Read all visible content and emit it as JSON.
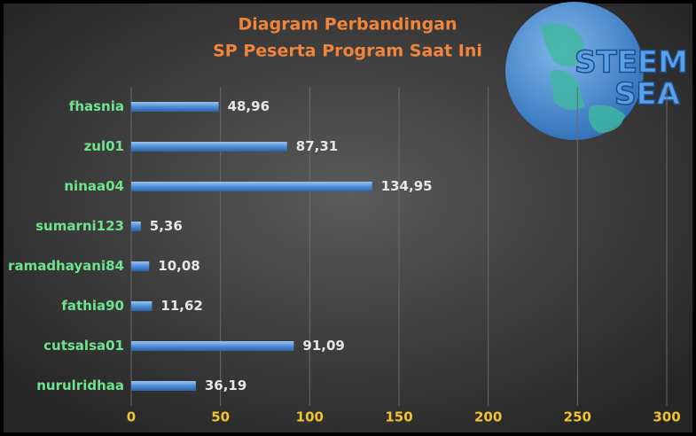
{
  "chart_data": {
    "type": "barh",
    "title": "Diagram Perbandingan",
    "subtitle": "SP Peserta Program Saat Ini",
    "categories": [
      "fhasnia",
      "zul01",
      "ninaa04",
      "sumarni123",
      "ramadhayani84",
      "fathia90",
      "cutsalsa01",
      "nurulridhaa"
    ],
    "values": [
      48.96,
      87.31,
      134.95,
      5.36,
      10.08,
      11.62,
      91.09,
      36.19
    ],
    "value_labels": [
      "48,96",
      "87,31",
      "134,95",
      "5,36",
      "10,08",
      "11,62",
      "91,09",
      "36,19"
    ],
    "color": "#4f8fd8",
    "xlim": [
      0,
      300
    ],
    "xticks": [
      0,
      50,
      100,
      150,
      200,
      250,
      300
    ],
    "grid": true
  },
  "logo": {
    "lines": [
      "STEEM",
      "SEA"
    ]
  }
}
